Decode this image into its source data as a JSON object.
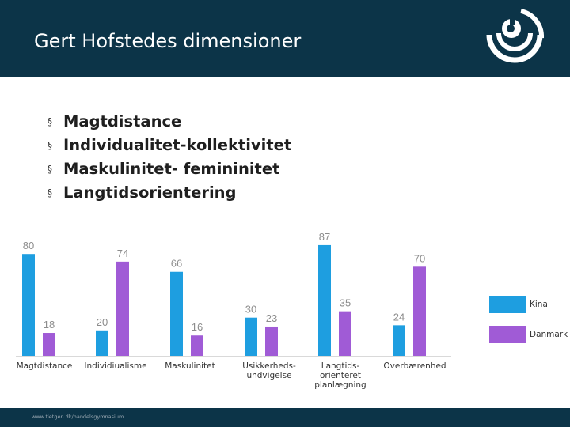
{
  "slide": {
    "title": "Gert Hofstedes dimensioner",
    "bullets": [
      "Magtdistance",
      "Individualitet-kollektivitet",
      "Maskulinitet- femininitet",
      "Langtidsorientering"
    ],
    "bullet_glyph": "§",
    "footer": "www.tietgen.dk/handelsgymnasium",
    "logo_icon": "tietgen-logo-icon"
  },
  "colors": {
    "header_bg": "#0c3448",
    "kina": "#1e9ee0",
    "danmark": "#a05bd6"
  },
  "chart_data": {
    "type": "bar",
    "title": "",
    "xlabel": "",
    "ylabel": "",
    "ylim": [
      0,
      100
    ],
    "categories": [
      [
        "Magtdistance"
      ],
      [
        "Individiualisme"
      ],
      [
        "Maskulinitet"
      ],
      [
        "Usikkerheds-",
        "undvigelse"
      ],
      [
        "Langtids-",
        "orienteret",
        "planlægning"
      ],
      [
        "Overbærenhed"
      ]
    ],
    "series": [
      {
        "name": "Kina",
        "values": [
          80,
          20,
          66,
          30,
          87,
          24
        ]
      },
      {
        "name": "Danmark",
        "values": [
          18,
          74,
          16,
          23,
          35,
          70
        ]
      }
    ],
    "legend": [
      "Kina",
      "Danmark"
    ],
    "legend_position": "right"
  }
}
